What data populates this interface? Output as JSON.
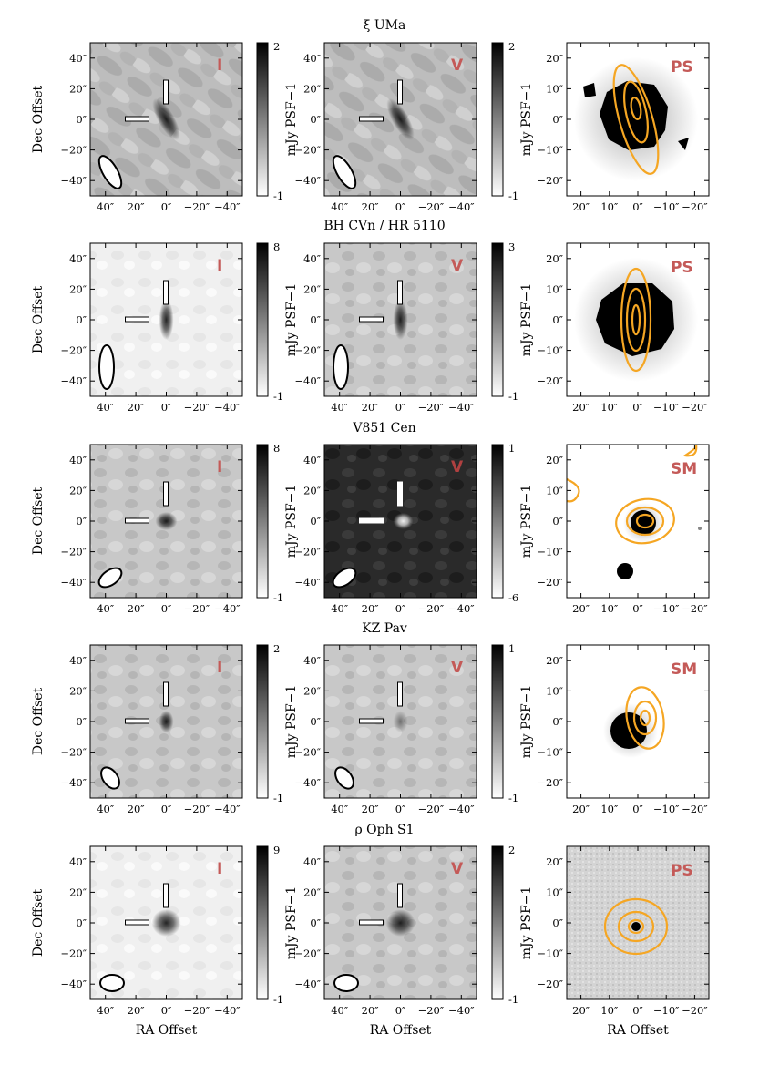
{
  "figure": {
    "xlabel": "RA Offset",
    "ylabel": "Dec Offset",
    "colorbar_label": "mJy PSF−1",
    "radio_ticks": [
      "40″",
      "20″",
      "0″",
      "−20″",
      "−40″"
    ],
    "radio_yticks": [
      "40″",
      "20″",
      "0″",
      "−20″",
      "−40″"
    ],
    "optical_ticks": [
      "20″",
      "10″",
      "0″",
      "−10″",
      "−20″"
    ],
    "optical_yticks": [
      "20″",
      "10″",
      "0″",
      "−10″",
      "−20″"
    ],
    "colors": {
      "contour": "#f5a623",
      "tag": "#c45a58"
    }
  },
  "rows": [
    {
      "title": "ξ UMa",
      "stokes_i": {
        "tag": "I",
        "cbar_max": "2",
        "cbar_min": "-1"
      },
      "stokes_v": {
        "tag": "V",
        "cbar_max": "2",
        "cbar_min": "-1"
      },
      "optical": {
        "tag": "PS"
      }
    },
    {
      "title": "BH CVn / HR 5110",
      "stokes_i": {
        "tag": "I",
        "cbar_max": "8",
        "cbar_min": "-1"
      },
      "stokes_v": {
        "tag": "V",
        "cbar_max": "3",
        "cbar_min": "-1"
      },
      "optical": {
        "tag": "PS"
      }
    },
    {
      "title": "V851 Cen",
      "stokes_i": {
        "tag": "I",
        "cbar_max": "8",
        "cbar_min": "-1"
      },
      "stokes_v": {
        "tag": "V",
        "cbar_max": "1",
        "cbar_min": "-6"
      },
      "optical": {
        "tag": "SM"
      }
    },
    {
      "title": "KZ Pav",
      "stokes_i": {
        "tag": "I",
        "cbar_max": "2",
        "cbar_min": "-1"
      },
      "stokes_v": {
        "tag": "V",
        "cbar_max": "1",
        "cbar_min": "-1"
      },
      "optical": {
        "tag": "SM"
      }
    },
    {
      "title": "ρ Oph S1",
      "stokes_i": {
        "tag": "I",
        "cbar_max": "9",
        "cbar_min": "-1"
      },
      "stokes_v": {
        "tag": "V",
        "cbar_max": "2",
        "cbar_min": "-1"
      },
      "optical": {
        "tag": "PS"
      }
    }
  ]
}
